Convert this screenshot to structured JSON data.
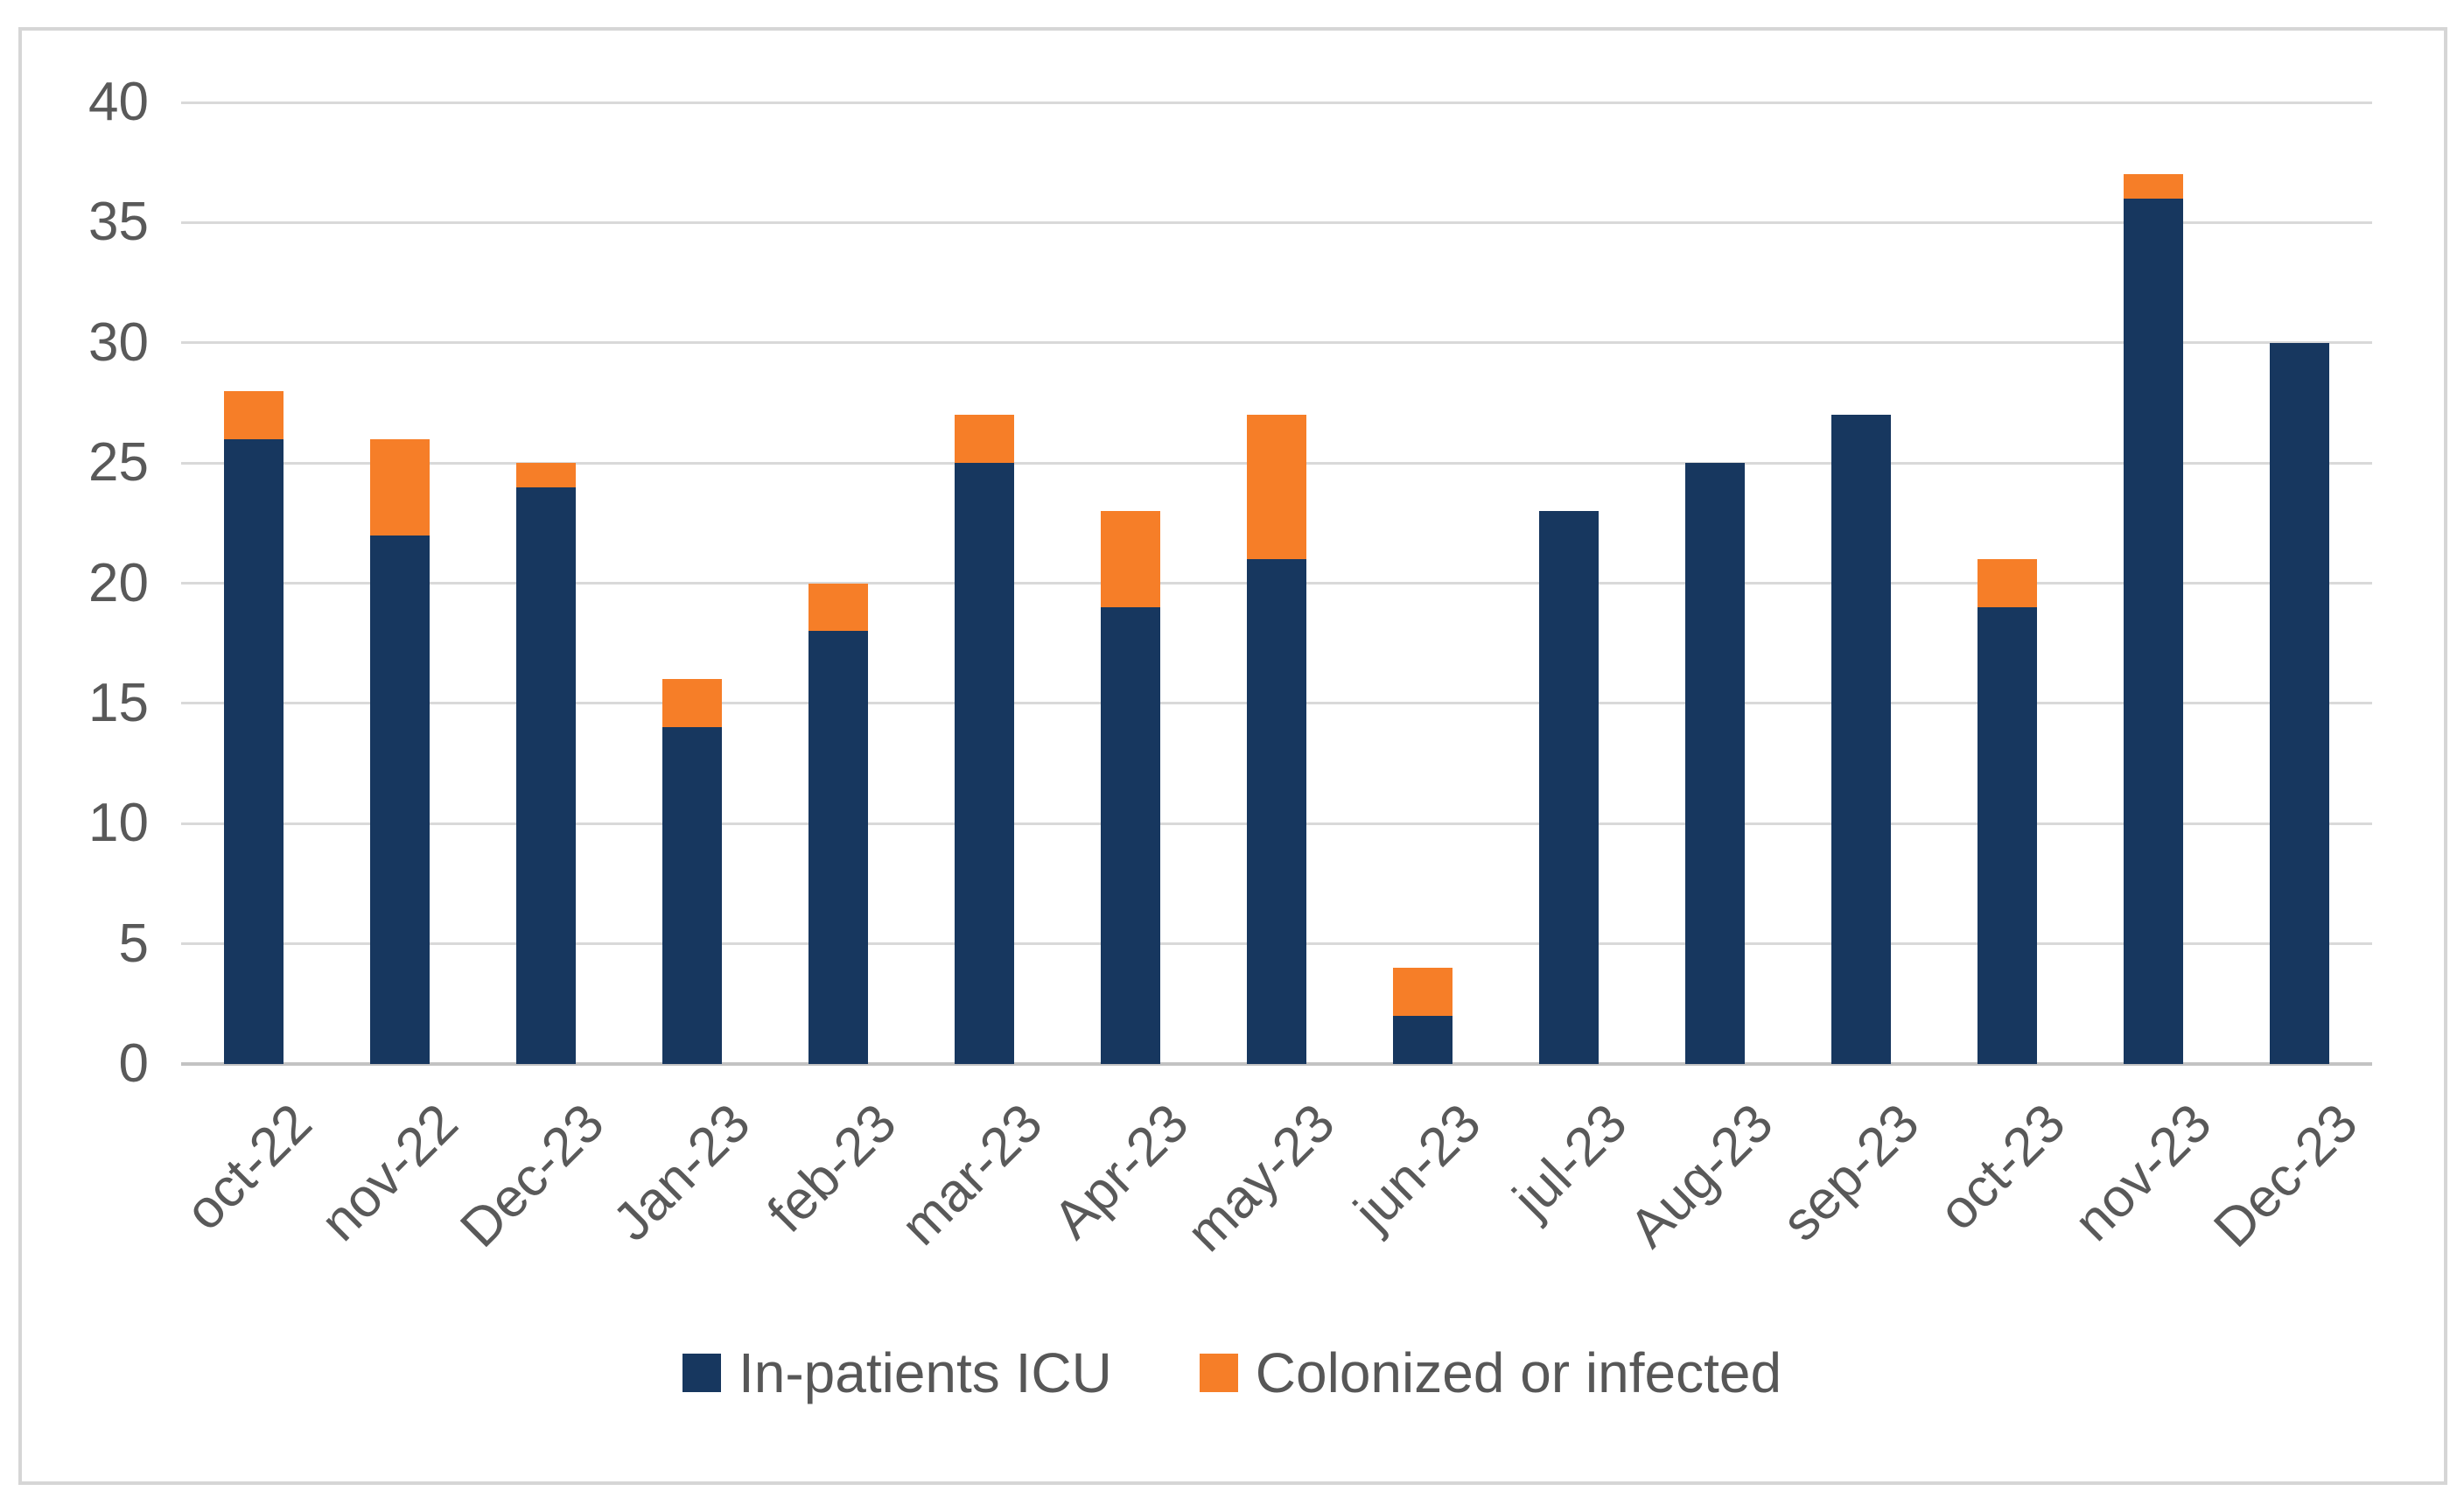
{
  "chart_data": {
    "type": "bar",
    "stacked": true,
    "title": "",
    "xlabel": "",
    "ylabel": "",
    "categories": [
      "oct-22",
      "nov-22",
      "Dec-23",
      "Jan-23",
      "feb-23",
      "mar-23",
      "Apr-23",
      "may-23",
      "jun-23",
      "jul-23",
      "Aug-23",
      "sep-23",
      "oct-23",
      "nov-23",
      "Dec-23"
    ],
    "series": [
      {
        "name": "In-patients ICU",
        "color": "#17375f",
        "values": [
          26,
          22,
          24,
          14,
          18,
          25,
          19,
          21,
          2,
          23,
          25,
          27,
          19,
          36,
          30
        ]
      },
      {
        "name": "Colonized or infected",
        "color": "#f67e28",
        "values": [
          2,
          4,
          1,
          2,
          2,
          2,
          4,
          6,
          2,
          0,
          0,
          0,
          2,
          1,
          0
        ]
      }
    ],
    "totals": [
      28,
      26,
      25,
      16,
      20,
      27,
      23,
      27,
      4,
      23,
      25,
      27,
      21,
      37,
      30
    ],
    "ylim": [
      0,
      40
    ],
    "yticks": [
      0,
      5,
      10,
      15,
      20,
      25,
      30,
      35,
      40
    ],
    "grid": true,
    "legend_position": "bottom",
    "x_label_rotation_deg": 45
  },
  "styles": {
    "background": "#ffffff",
    "gridline_color": "#d9d9d9",
    "axis_line_color": "#c3c3c3",
    "tick_label_color": "#595959",
    "legend_text_color": "#575757",
    "border_color": "#d6d6d6"
  }
}
